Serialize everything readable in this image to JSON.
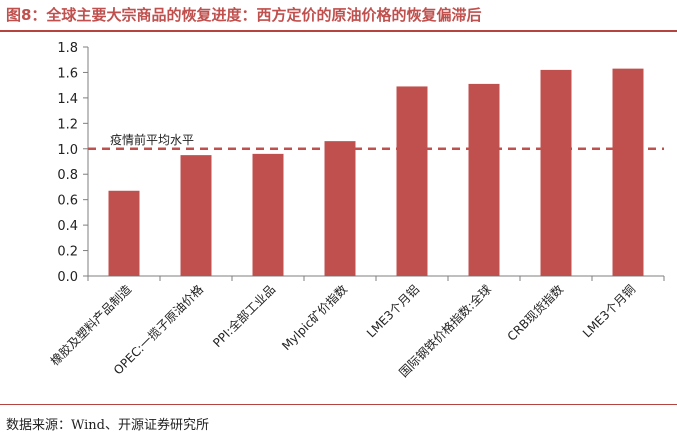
{
  "figure": {
    "title": "图8：全球主要大宗商品的恢复进度：西方定价的原油价格的恢复偏滞后",
    "source": "数据来源：Wind、开源证券研究所"
  },
  "colors": {
    "bar": "#c0504d",
    "reference_line": "#c0504d",
    "title": "#c0504d",
    "axis": "#7f7f7f"
  },
  "chart_data": {
    "type": "bar",
    "categories": [
      "橡胶及塑料产品制造",
      "OPEC:一揽子原油价格",
      "PPI:全部工业品",
      "Mylpic矿价指数",
      "LME3个月铝",
      "国际钢铁价格指数:全球",
      "CRB现货指数",
      "LME3个月铜"
    ],
    "values": [
      0.67,
      0.95,
      0.96,
      1.06,
      1.49,
      1.51,
      1.62,
      1.63
    ],
    "ylim": [
      0,
      1.8
    ],
    "yticks": [
      "0.0",
      "0.2",
      "0.4",
      "0.6",
      "0.8",
      "1.0",
      "1.2",
      "1.4",
      "1.6",
      "1.8"
    ],
    "reference_line": {
      "value": 1.0,
      "label": "疫情前平均水平",
      "style": "dashed"
    },
    "grid": false,
    "legend": "none"
  }
}
